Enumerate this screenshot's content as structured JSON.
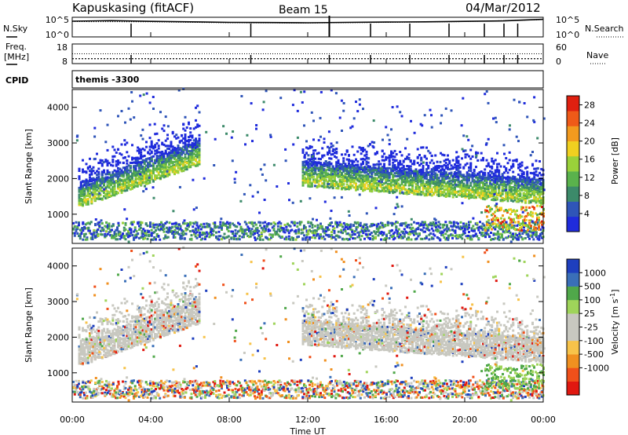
{
  "header": {
    "station": "Kapuskasing (fitACF)",
    "beam": "Beam 15",
    "date": "04/Mar/2012"
  },
  "top_panels": {
    "nsky_label": "N.Sky",
    "nsearch_label": "N.Search",
    "nsky_ticks": [
      "10^5",
      "10^0"
    ],
    "nsearch_ticks": [
      "10^5",
      "10^0"
    ],
    "freq_label_1": "Freq.",
    "freq_label_2": "[MHz]",
    "freq_ticks": [
      "18",
      "8"
    ],
    "nave_label": "Nave",
    "nave_ticks": [
      "60",
      "0"
    ],
    "cpid_label": "CPID",
    "cpid_value": "themis -3300"
  },
  "colors": {
    "power": [
      "#1f2bdc",
      "#2f55b8",
      "#3c8a6a",
      "#5ab24c",
      "#9ad13a",
      "#f0d020",
      "#f29a1e",
      "#ef5a18",
      "#e02010"
    ],
    "velocity": [
      "#e01810",
      "#f0501a",
      "#f09020",
      "#f7c34a",
      "#c8c8c0",
      "#c8c8c0",
      "#9fd45a",
      "#50a84a",
      "#3a6fb8",
      "#1e3fbe"
    ],
    "gray_scatter": "#c5c5be"
  },
  "chart_data": [
    {
      "type": "line",
      "panel": "noise",
      "title": "",
      "xlabel": "",
      "ylabel": "N.Sky",
      "y_scale": "log",
      "ylim": [
        "10^0",
        "10^5"
      ],
      "series": [
        {
          "name": "N.Sky",
          "x": [
            "00:00",
            "02:00",
            "04:00",
            "06:00",
            "08:00",
            "10:00",
            "12:00",
            "14:00",
            "16:00",
            "18:00",
            "20:00",
            "22:00",
            "24:00"
          ],
          "values": [
            10000,
            14000,
            9000,
            7000,
            5000,
            4500,
            4000,
            5000,
            6000,
            7000,
            9000,
            12000,
            30000
          ]
        },
        {
          "name": "N.Search",
          "x": [
            "00:00",
            "04:00",
            "08:00",
            "12:00",
            "16:00",
            "20:00",
            "24:00"
          ],
          "values": [
            8000,
            7000,
            4000,
            3500,
            5000,
            8000,
            25000
          ]
        }
      ]
    },
    {
      "type": "line",
      "panel": "frequency",
      "ylabel": "Freq. [MHz]",
      "ylim": [
        8,
        18
      ],
      "y2label": "Nave",
      "y2lim": [
        0,
        60
      ],
      "series": [
        {
          "name": "Freq.",
          "x": [
            "00:00",
            "24:00"
          ],
          "values": [
            10.5,
            10.5
          ]
        },
        {
          "name": "Nave",
          "x": [
            "00:00",
            "24:00"
          ],
          "values": [
            30,
            30
          ]
        }
      ]
    },
    {
      "type": "heatmap",
      "panel": "power",
      "xlabel": "Time UT",
      "ylabel": "Slant Range [km]",
      "x_ticks": [
        "00:00",
        "04:00",
        "08:00",
        "12:00",
        "16:00",
        "20:00",
        "00:00"
      ],
      "xlim": [
        0,
        24
      ],
      "y_ticks": [
        1000,
        2000,
        3000,
        4000
      ],
      "ylim": [
        180,
        4500
      ],
      "colorbar": {
        "label": "Power [dB]",
        "ticks": [
          4,
          8,
          12,
          16,
          20,
          24,
          28
        ],
        "range": [
          0,
          30
        ]
      },
      "echo_bands": [
        {
          "t_start": 0.3,
          "t_end": 6.5,
          "range_start_km": 1300,
          "range_end_km": 2500,
          "peak_db": 20
        },
        {
          "t_start": 11.7,
          "t_end": 24.0,
          "range_start_km": 1900,
          "range_end_km": 1400,
          "peak_db": 20
        },
        {
          "t_start": 0.0,
          "t_end": 24.0,
          "range_start_km": 450,
          "range_end_km": 450,
          "peak_db": 14
        }
      ]
    },
    {
      "type": "heatmap",
      "panel": "velocity",
      "xlabel": "Time UT",
      "ylabel": "Slant Range [km]",
      "x_ticks": [
        "00:00",
        "04:00",
        "08:00",
        "12:00",
        "16:00",
        "20:00",
        "00:00"
      ],
      "xlim": [
        0,
        24
      ],
      "y_ticks": [
        1000,
        2000,
        3000,
        4000
      ],
      "ylim": [
        180,
        4500
      ],
      "colorbar": {
        "label": "Velocity [m s^-1]",
        "ticks": [
          "1000",
          "500",
          "100",
          "25",
          "-25",
          "-100",
          "-500",
          "-1000"
        ]
      },
      "echo_bands": [
        {
          "t_start": 0.3,
          "t_end": 6.5,
          "range_start_km": 1300,
          "range_end_km": 2500,
          "dominant": "-25 to 25"
        },
        {
          "t_start": 11.7,
          "t_end": 24.0,
          "range_start_km": 1900,
          "range_end_km": 1400,
          "dominant": "-25 to 25"
        },
        {
          "t_start": 0.0,
          "t_end": 24.0,
          "range_start_km": 450,
          "range_end_km": 450,
          "dominant": "mixed"
        }
      ]
    }
  ]
}
